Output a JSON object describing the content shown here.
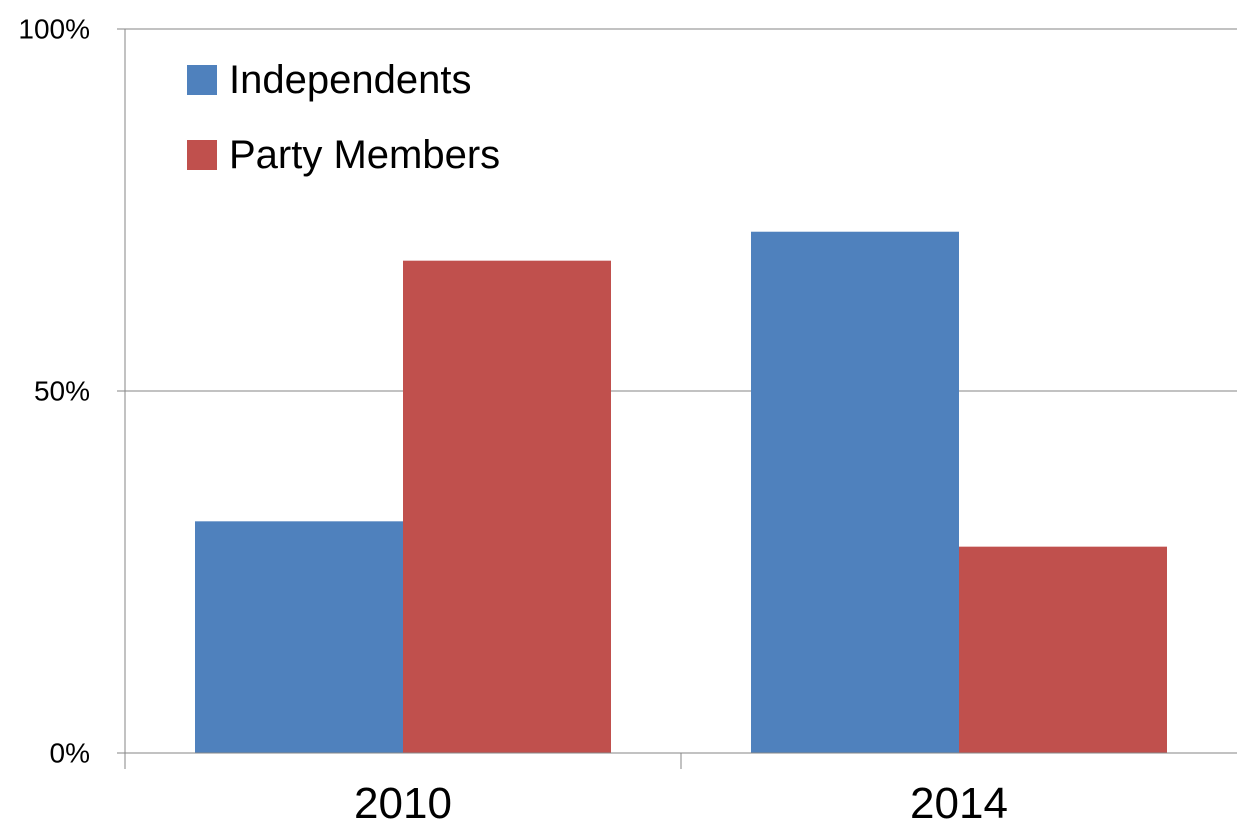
{
  "chart_data": {
    "type": "bar",
    "categories": [
      "2010",
      "2014"
    ],
    "series": [
      {
        "name": "Independents",
        "values": [
          32,
          72
        ],
        "color": "#4F81BD"
      },
      {
        "name": "Party Members",
        "values": [
          68,
          28.5
        ],
        "color": "#C0504D"
      }
    ],
    "ylim": [
      0,
      100
    ],
    "yticks": [
      0,
      50,
      100
    ],
    "ytick_labels": [
      "0%",
      "50%",
      "100%"
    ],
    "title": "",
    "xlabel": "",
    "ylabel": "",
    "grid": true,
    "legend_position": "top-left"
  }
}
